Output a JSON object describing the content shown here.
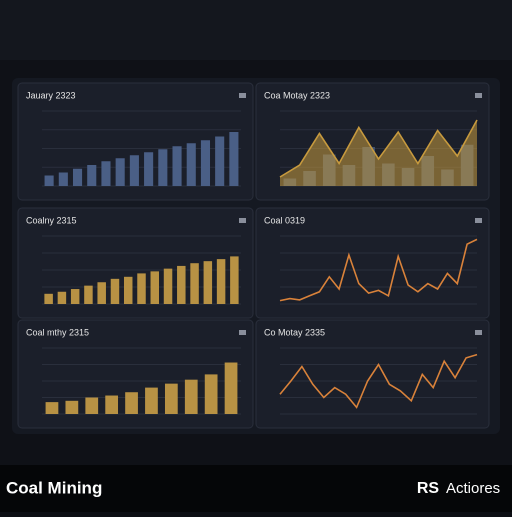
{
  "panels": [
    {
      "title": "Jauary 2323",
      "type": "bar",
      "ylim": [
        0,
        100
      ],
      "series": [
        {
          "color": "#4a5f86",
          "values": [
            14,
            18,
            23,
            28,
            33,
            37,
            41,
            45,
            49,
            53,
            57,
            61,
            66,
            72
          ]
        }
      ]
    },
    {
      "title": "Coa Motay 2323",
      "type": "combo",
      "ylim": [
        0,
        100
      ],
      "series": [
        {
          "color": "#3f5373",
          "values": [
            10,
            20,
            42,
            28,
            52,
            30,
            24,
            40,
            22,
            55
          ]
        },
        {
          "color": "#c79a3e",
          "values": [
            12,
            28,
            70,
            30,
            78,
            36,
            72,
            30,
            74,
            40,
            88
          ]
        }
      ]
    },
    {
      "title": "Coalny 2315",
      "type": "bar",
      "ylim": [
        0,
        100
      ],
      "series": [
        {
          "color": "#b89244",
          "values": [
            15,
            18,
            22,
            27,
            32,
            37,
            40,
            45,
            48,
            52,
            56,
            60,
            63,
            66,
            70
          ]
        }
      ]
    },
    {
      "title": "Coal 0319",
      "type": "line",
      "ylim": [
        0,
        100
      ],
      "series": [
        {
          "color": "#d9823a",
          "values": [
            5,
            8,
            6,
            12,
            18,
            40,
            22,
            72,
            30,
            16,
            20,
            12,
            70,
            28,
            18,
            30,
            22,
            45,
            30,
            88,
            95
          ]
        }
      ]
    },
    {
      "title": "Coal mthy 2315",
      "type": "bar",
      "ylim": [
        0,
        100
      ],
      "series": [
        {
          "color": "#b89244",
          "values": [
            18,
            20,
            25,
            28,
            33,
            40,
            46,
            52,
            60,
            78
          ]
        }
      ]
    },
    {
      "title": "Co Motay 2335",
      "type": "line",
      "ylim": [
        0,
        100
      ],
      "series": [
        {
          "color": "#d9823a",
          "values": [
            30,
            50,
            72,
            45,
            25,
            40,
            30,
            10,
            50,
            75,
            45,
            35,
            20,
            60,
            40,
            80,
            55,
            85,
            90
          ]
        }
      ]
    }
  ],
  "footer": {
    "brand": "Coal Mining",
    "logo": "RS",
    "action": "Actiores"
  }
}
